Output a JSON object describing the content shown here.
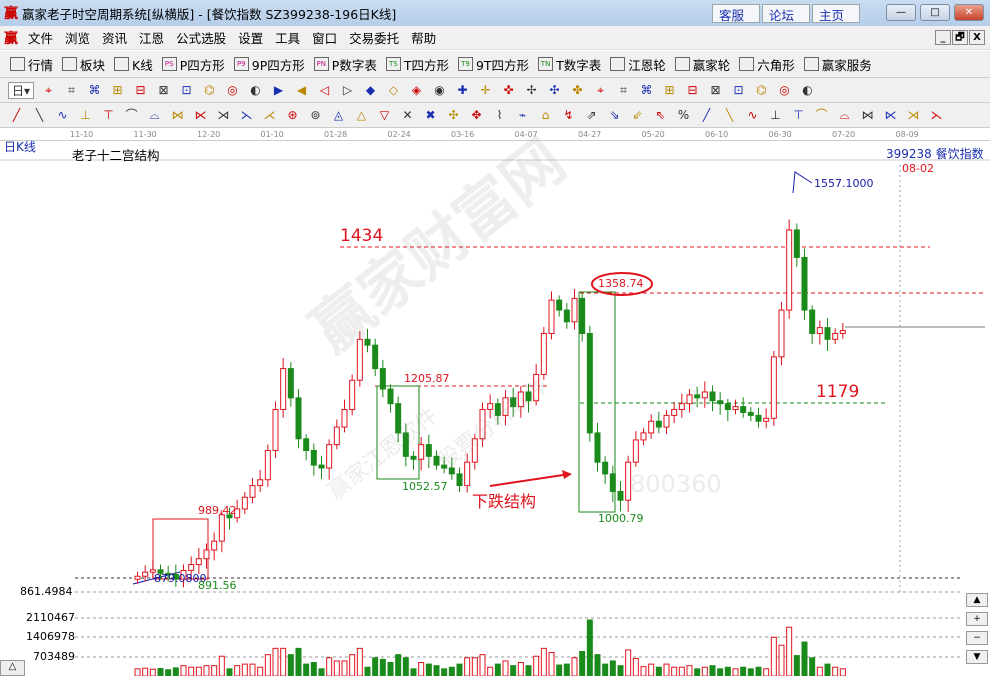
{
  "window": {
    "logo": "赢",
    "title": "赢家老子时空周期系统[纵横版] - [餐饮指数  SZ399238-196日K线]",
    "links": [
      "客服",
      "论坛",
      "主页"
    ],
    "controls": [
      "minimize",
      "maximize",
      "close"
    ]
  },
  "menu": {
    "logo": "赢",
    "items": [
      "文件",
      "浏览",
      "资讯",
      "江恩",
      "公式选股",
      "设置",
      "工具",
      "窗口",
      "交易委托",
      "帮助"
    ],
    "mdi": [
      "_",
      "🗗",
      "X"
    ]
  },
  "toolbar": {
    "items": [
      {
        "icon": "grid-icon",
        "label": "行情"
      },
      {
        "icon": "blocks-icon",
        "label": "板块"
      },
      {
        "icon": "candles-icon",
        "label": "K线"
      },
      {
        "icon": "PS",
        "label": "P四方形"
      },
      {
        "icon": "P9",
        "label": "9P四方形"
      },
      {
        "icon": "PN",
        "label": "P数字表"
      },
      {
        "icon": "TS",
        "label": "T四方形"
      },
      {
        "icon": "T9",
        "label": "9T四方形"
      },
      {
        "icon": "TN",
        "label": "T数字表"
      },
      {
        "icon": "target-icon",
        "label": "江恩轮"
      },
      {
        "icon": "big-icon",
        "label": "赢家轮"
      },
      {
        "icon": "hexagon-icon",
        "label": "六角形"
      },
      {
        "icon": "dollar-icon",
        "label": "赢家服务"
      }
    ]
  },
  "period_selector": "日",
  "date_axis": [
    "11-10",
    "11-30",
    "12-20",
    "01-10",
    "01-28",
    "02-24",
    "03-16",
    "04-07",
    "04-27",
    "05-20",
    "06-10",
    "06-30",
    "07-20",
    "08-09"
  ],
  "chart": {
    "period_label": "日K线",
    "indicator_title": "老子十二宫结构",
    "code_name": "399238 餐饮指数",
    "date_marker": "08-02",
    "price_axis": "861.4984",
    "volume_axis": [
      "2110467",
      "1406978",
      "703489"
    ],
    "annotations": {
      "high": "1557.1000",
      "level_1434": "1434",
      "level_1358": "1358.74",
      "level_1179": "1179",
      "box1_top": "989.42",
      "box1_low": "879.0800",
      "box1_base": "891.56",
      "box2_top": "1205.87",
      "box2_low": "1052.57",
      "box3_low": "1000.79",
      "drop_text": "下跌结构"
    },
    "watermark": [
      "赢家财富网",
      "赢家江恩软件",
      "股票分析软件",
      "800360"
    ],
    "colors": {
      "up": "#e0141e",
      "down": "#1a8a1a",
      "level": "#e0141e",
      "annotation_blue": "#1a1aa8"
    },
    "closes": [
      885,
      892,
      896,
      890,
      888,
      880,
      895,
      905,
      915,
      930,
      945,
      990,
      985,
      1000,
      1020,
      1040,
      1050,
      1100,
      1170,
      1240,
      1190,
      1120,
      1100,
      1075,
      1070,
      1110,
      1140,
      1170,
      1220,
      1290,
      1280,
      1240,
      1205,
      1180,
      1130,
      1090,
      1085,
      1110,
      1090,
      1075,
      1070,
      1060,
      1040,
      1080,
      1120,
      1170,
      1180,
      1160,
      1190,
      1175,
      1200,
      1185,
      1230,
      1300,
      1357,
      1340,
      1320,
      1360,
      1300,
      1130,
      1080,
      1060,
      1030,
      1015,
      1080,
      1118,
      1130,
      1150,
      1140,
      1160,
      1170,
      1180,
      1195,
      1190,
      1200,
      1185,
      1180,
      1170,
      1175,
      1165,
      1160,
      1150,
      1155,
      1260,
      1340,
      1477,
      1430,
      1340,
      1300,
      1310,
      1290,
      1300,
      1305
    ]
  }
}
